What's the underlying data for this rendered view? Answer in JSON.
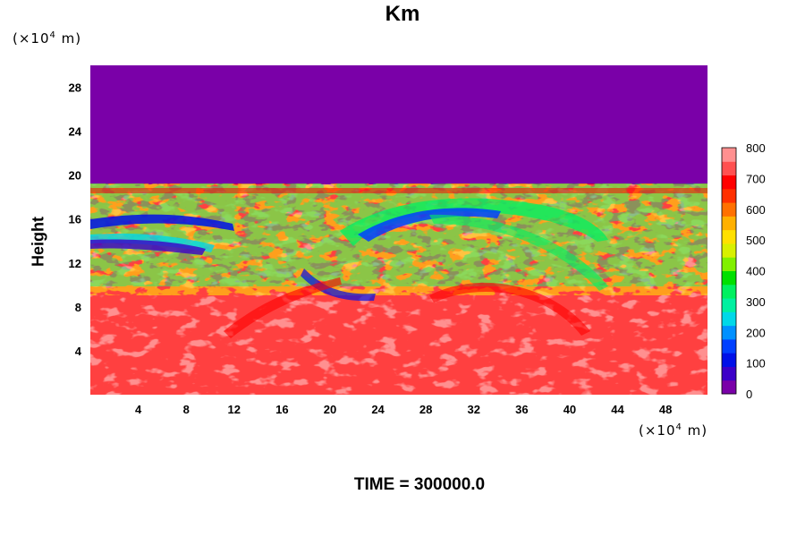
{
  "header": {
    "title": "Km"
  },
  "axes": {
    "y_unit_base": "(×10",
    "y_unit_exp": "4",
    "y_unit_tail": " m)",
    "x_unit_base": "(×10",
    "x_unit_exp": "4",
    "x_unit_tail": " m)",
    "ylabel": "Height"
  },
  "footer": {
    "time_label": "TIME = 300000.0"
  },
  "chart_data": {
    "type": "heatmap",
    "title": "Km",
    "xlabel": "",
    "ylabel": "Height",
    "x_unit": "×10^4 m",
    "y_unit": "×10^4 m",
    "xlim": [
      0,
      51.5
    ],
    "ylim": [
      0,
      30
    ],
    "x_ticks": [
      4,
      8,
      12,
      16,
      20,
      24,
      28,
      32,
      36,
      40,
      44,
      48
    ],
    "y_ticks": [
      4,
      8,
      12,
      16,
      20,
      24,
      28
    ],
    "colorbar": {
      "min": 0,
      "max": 800,
      "ticks": [
        0,
        100,
        200,
        300,
        400,
        500,
        600,
        700,
        800
      ],
      "colors": [
        "#7a00a8",
        "#3c00c8",
        "#0010e8",
        "#0040ff",
        "#0090ff",
        "#00d8e8",
        "#00f0a0",
        "#00f060",
        "#00e000",
        "#80f000",
        "#d8f000",
        "#ffe000",
        "#ffb000",
        "#ff7000",
        "#ff3000",
        "#ff0000",
        "#ff5050",
        "#ff9090"
      ]
    },
    "regions": [
      {
        "description_value": 0,
        "y_from": 19.3,
        "y_to": 30,
        "x_from": 0,
        "x_to": 51.5
      },
      {
        "description_value": 800,
        "y_from": 0,
        "y_to": 19.3,
        "x_from": 0,
        "x_to": 51.5
      }
    ],
    "footer": "TIME = 300000.0"
  }
}
